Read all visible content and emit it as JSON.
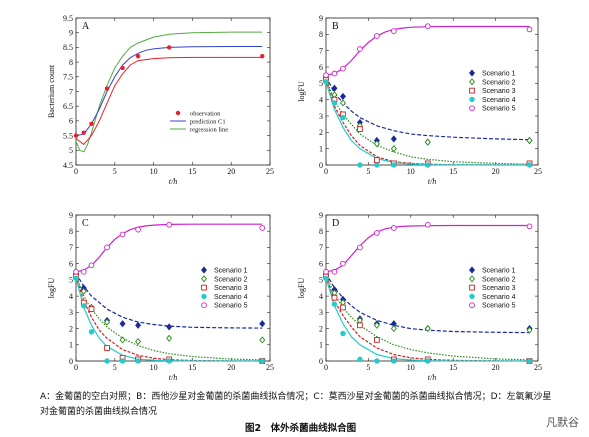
{
  "caption": "A：金葡菌的空白对照；B：西他沙星对金葡菌的杀菌曲线拟合情况；C：莫西沙星对金葡菌的杀菌曲线拟合情况；D：左氧氟沙星对金葡菌的杀菌曲线拟合情况",
  "figure_title": "图2　体外杀菌曲线拟合图",
  "watermark": "凡默谷",
  "colors": {
    "observation": "#e8202a",
    "prediction": "#3344cc",
    "regression": "#55aa44",
    "s1": "#1a2a9a",
    "s2": "#2a8a1a",
    "s3": "#cc2222",
    "s4": "#22cccc",
    "s5": "#cc22cc"
  },
  "chart_data": [
    {
      "id": "A",
      "type": "line",
      "panel_label": "A",
      "xlabel": "t/h",
      "ylabel": "Bacterium count",
      "xlim": [
        0,
        25
      ],
      "ylim": [
        4.5,
        9.5
      ],
      "xticks": [
        0,
        5,
        10,
        15,
        20,
        25
      ],
      "yticks": [
        4.5,
        5,
        5.5,
        6,
        6.5,
        7,
        7.5,
        8,
        8.5,
        9,
        9.5
      ],
      "legend": [
        "observation",
        "prediction C1",
        "regression line"
      ],
      "observation": {
        "x": [
          0,
          1,
          2,
          4,
          6,
          8,
          12,
          24
        ],
        "y": [
          5.5,
          5.6,
          5.9,
          7.1,
          7.8,
          8.2,
          8.5,
          8.2
        ]
      },
      "prediction": {
        "x": [
          0,
          1,
          2,
          3,
          4,
          5,
          6,
          7,
          8,
          9,
          10,
          12,
          15,
          20,
          24
        ],
        "y": [
          5.5,
          5.55,
          5.9,
          6.4,
          7.0,
          7.5,
          7.9,
          8.15,
          8.3,
          8.4,
          8.45,
          8.5,
          8.52,
          8.53,
          8.53
        ]
      },
      "regression": {
        "x": [
          0,
          0.5,
          1,
          1.5,
          2,
          3,
          4,
          5,
          6,
          7,
          8,
          10,
          12,
          15,
          20,
          24
        ],
        "y": [
          5.3,
          5.0,
          4.95,
          5.2,
          5.6,
          6.5,
          7.2,
          7.8,
          8.2,
          8.5,
          8.65,
          8.85,
          8.95,
          9.0,
          9.02,
          9.02
        ]
      },
      "line_fit": {
        "x": [
          0,
          1,
          2,
          3,
          4,
          5,
          6,
          7,
          8,
          10,
          12,
          15,
          20,
          24
        ],
        "y": [
          5.4,
          5.2,
          5.5,
          6.0,
          6.6,
          7.2,
          7.6,
          7.9,
          8.05,
          8.12,
          8.15,
          8.16,
          8.16,
          8.16
        ]
      }
    },
    {
      "id": "B",
      "type": "scatter",
      "panel_label": "B",
      "xlabel": "t/h",
      "ylabel": "logFU",
      "xlim": [
        0,
        25
      ],
      "ylim": [
        0,
        9
      ],
      "xticks": [
        0,
        5,
        10,
        15,
        20,
        25
      ],
      "yticks": [
        0,
        1,
        2,
        3,
        4,
        5,
        6,
        7,
        8,
        9
      ],
      "series": [
        {
          "name": "Scenario 1",
          "marker": "diamond",
          "x": [
            0,
            1,
            2,
            4,
            6,
            8,
            12,
            24
          ],
          "y": [
            5.4,
            4.7,
            4.2,
            2.6,
            1.5,
            1.6,
            1.4,
            1.5
          ],
          "fit_x": [
            0,
            1,
            2,
            3,
            4,
            6,
            8,
            10,
            12,
            15,
            20,
            24
          ],
          "fit_y": [
            5.4,
            4.4,
            3.8,
            3.3,
            2.9,
            2.4,
            2.1,
            1.9,
            1.8,
            1.7,
            1.6,
            1.55
          ]
        },
        {
          "name": "Scenario 2",
          "marker": "diamond-open",
          "x": [
            0,
            1,
            2,
            4,
            6,
            8,
            12,
            24
          ],
          "y": [
            5.3,
            4.3,
            3.8,
            2.4,
            1.3,
            1.0,
            1.4,
            1.5
          ],
          "fit_x": [
            0,
            1,
            2,
            3,
            4,
            6,
            8,
            10,
            12,
            15,
            20,
            24
          ],
          "fit_y": [
            5.3,
            3.9,
            3.1,
            2.5,
            1.9,
            1.2,
            0.8,
            0.5,
            0.35,
            0.2,
            0.1,
            0.05
          ]
        },
        {
          "name": "Scenario 3",
          "marker": "square-open",
          "x": [
            0,
            1,
            2,
            4,
            6,
            8,
            12,
            24
          ],
          "y": [
            5.2,
            4.0,
            3.1,
            2.2,
            0.3,
            0.1,
            0.1,
            0.1
          ],
          "fit_x": [
            0,
            1,
            2,
            3,
            4,
            6,
            8,
            10,
            12,
            15,
            20,
            24
          ],
          "fit_y": [
            5.2,
            3.6,
            2.6,
            1.8,
            1.2,
            0.5,
            0.2,
            0.1,
            0.05,
            0.02,
            0.01,
            0.0
          ]
        },
        {
          "name": "Scenario 4",
          "marker": "circle",
          "x": [
            0,
            1,
            2,
            4,
            6,
            8,
            12,
            24
          ],
          "y": [
            5.1,
            3.8,
            2.9,
            0.0,
            0.0,
            0.0,
            0.0,
            0.0
          ],
          "fit_x": [
            0,
            1,
            2,
            3,
            4,
            6,
            8,
            10,
            12,
            15,
            20,
            24
          ],
          "fit_y": [
            5.1,
            3.4,
            2.3,
            1.5,
            1.0,
            0.4,
            0.15,
            0.06,
            0.02,
            0.01,
            0.0,
            0.0
          ]
        },
        {
          "name": "Scenario 5",
          "marker": "circle-open",
          "x": [
            0,
            1,
            2,
            4,
            6,
            8,
            12,
            24
          ],
          "y": [
            5.5,
            5.6,
            5.9,
            7.1,
            7.9,
            8.2,
            8.5,
            8.3
          ],
          "fit_x": [
            0,
            1,
            2,
            3,
            4,
            5,
            6,
            7,
            8,
            9,
            10,
            12,
            15,
            20,
            24
          ],
          "fit_y": [
            5.5,
            5.6,
            5.9,
            6.4,
            7.0,
            7.5,
            7.9,
            8.15,
            8.3,
            8.38,
            8.43,
            8.47,
            8.48,
            8.48,
            8.48
          ]
        }
      ]
    },
    {
      "id": "C",
      "type": "scatter",
      "panel_label": "C",
      "xlabel": "t/h",
      "ylabel": "logFU",
      "xlim": [
        0,
        25
      ],
      "ylim": [
        0,
        9
      ],
      "xticks": [
        0,
        5,
        10,
        15,
        20,
        25
      ],
      "yticks": [
        0,
        1,
        2,
        3,
        4,
        5,
        6,
        7,
        8,
        9
      ],
      "series": [
        {
          "name": "Scenario 1",
          "marker": "diamond",
          "x": [
            0,
            1,
            2,
            4,
            6,
            8,
            12,
            24
          ],
          "y": [
            5.4,
            4.5,
            3.3,
            2.5,
            2.3,
            2.2,
            2.1,
            2.3
          ],
          "fit_x": [
            0,
            1,
            2,
            3,
            4,
            6,
            8,
            10,
            12,
            15,
            20,
            24
          ],
          "fit_y": [
            5.4,
            4.6,
            4.0,
            3.6,
            3.2,
            2.7,
            2.4,
            2.25,
            2.15,
            2.08,
            2.04,
            2.03
          ]
        },
        {
          "name": "Scenario 2",
          "marker": "diamond-open",
          "x": [
            0,
            1,
            2,
            4,
            6,
            8,
            12,
            24
          ],
          "y": [
            5.3,
            4.3,
            3.3,
            2.4,
            1.3,
            1.2,
            1.4,
            1.3
          ],
          "fit_x": [
            0,
            1,
            2,
            3,
            4,
            6,
            8,
            10,
            12,
            15,
            20,
            24
          ],
          "fit_y": [
            5.3,
            4.0,
            3.2,
            2.6,
            2.1,
            1.4,
            0.95,
            0.65,
            0.45,
            0.28,
            0.12,
            0.07
          ]
        },
        {
          "name": "Scenario 3",
          "marker": "square-open",
          "x": [
            0,
            1,
            2,
            4,
            6,
            8,
            12,
            24
          ],
          "y": [
            5.2,
            3.6,
            3.2,
            0.8,
            0.2,
            0.1,
            0.1,
            0.0
          ],
          "fit_x": [
            0,
            1,
            2,
            3,
            4,
            6,
            8,
            10,
            12,
            15,
            20,
            24
          ],
          "fit_y": [
            5.2,
            3.7,
            2.7,
            1.9,
            1.4,
            0.7,
            0.35,
            0.17,
            0.08,
            0.03,
            0.01,
            0.0
          ]
        },
        {
          "name": "Scenario 4",
          "marker": "circle",
          "x": [
            0,
            1,
            2,
            4,
            6,
            8,
            12,
            24
          ],
          "y": [
            5.1,
            3.4,
            1.8,
            0.0,
            0.0,
            0.0,
            0.0,
            0.0
          ],
          "fit_x": [
            0,
            1,
            2,
            3,
            4,
            6,
            8,
            10,
            12,
            15,
            20,
            24
          ],
          "fit_y": [
            5.1,
            3.3,
            2.2,
            1.4,
            0.9,
            0.35,
            0.12,
            0.05,
            0.02,
            0.0,
            0.0,
            0.0
          ]
        },
        {
          "name": "Scenario 5",
          "marker": "circle-open",
          "x": [
            0,
            1,
            2,
            4,
            6,
            8,
            12,
            24
          ],
          "y": [
            5.5,
            5.5,
            5.9,
            7.0,
            7.8,
            8.1,
            8.4,
            8.2
          ],
          "fit_x": [
            0,
            1,
            2,
            3,
            4,
            5,
            6,
            7,
            8,
            9,
            10,
            12,
            15,
            20,
            24
          ],
          "fit_y": [
            5.5,
            5.6,
            5.9,
            6.4,
            7.0,
            7.5,
            7.85,
            8.1,
            8.25,
            8.33,
            8.38,
            8.42,
            8.43,
            8.43,
            8.43
          ]
        }
      ]
    },
    {
      "id": "D",
      "type": "scatter",
      "panel_label": "D",
      "xlabel": "t/h",
      "ylabel": "logFU",
      "xlim": [
        0,
        25
      ],
      "ylim": [
        0,
        9
      ],
      "xticks": [
        0,
        5,
        10,
        15,
        20,
        25
      ],
      "yticks": [
        0,
        1,
        2,
        3,
        4,
        5,
        6,
        7,
        8,
        9
      ],
      "series": [
        {
          "name": "Scenario 1",
          "marker": "diamond",
          "x": [
            0,
            1,
            2,
            4,
            6,
            8,
            12,
            24
          ],
          "y": [
            5.4,
            4.4,
            3.8,
            2.6,
            2.3,
            2.3,
            2.0,
            2.0
          ],
          "fit_x": [
            0,
            1,
            2,
            3,
            4,
            6,
            8,
            10,
            12,
            15,
            20,
            24
          ],
          "fit_y": [
            5.4,
            4.5,
            3.9,
            3.4,
            3.0,
            2.5,
            2.2,
            2.0,
            1.9,
            1.82,
            1.77,
            1.75
          ]
        },
        {
          "name": "Scenario 2",
          "marker": "diamond-open",
          "x": [
            0,
            1,
            2,
            4,
            6,
            8,
            12,
            24
          ],
          "y": [
            5.3,
            4.2,
            3.6,
            2.5,
            2.2,
            2.0,
            2.0,
            1.9
          ],
          "fit_x": [
            0,
            1,
            2,
            3,
            4,
            6,
            8,
            10,
            12,
            15,
            20,
            24
          ],
          "fit_y": [
            5.3,
            4.1,
            3.3,
            2.7,
            2.2,
            1.5,
            1.0,
            0.7,
            0.5,
            0.3,
            0.13,
            0.07
          ]
        },
        {
          "name": "Scenario 3",
          "marker": "square-open",
          "x": [
            0,
            1,
            2,
            4,
            6,
            8,
            12,
            24
          ],
          "y": [
            5.2,
            3.9,
            3.3,
            2.2,
            1.3,
            0.1,
            0.1,
            0.0
          ],
          "fit_x": [
            0,
            1,
            2,
            3,
            4,
            6,
            8,
            10,
            12,
            15,
            20,
            24
          ],
          "fit_y": [
            5.2,
            3.7,
            2.8,
            2.1,
            1.5,
            0.8,
            0.4,
            0.2,
            0.1,
            0.04,
            0.01,
            0.0
          ]
        },
        {
          "name": "Scenario 4",
          "marker": "circle",
          "x": [
            0,
            1,
            2,
            4,
            6,
            8,
            12,
            24
          ],
          "y": [
            5.1,
            3.5,
            1.7,
            0.1,
            0.0,
            0.0,
            0.0,
            0.0
          ],
          "fit_x": [
            0,
            1,
            2,
            3,
            4,
            6,
            8,
            10,
            12,
            15,
            20,
            24
          ],
          "fit_y": [
            5.1,
            3.4,
            2.3,
            1.5,
            1.0,
            0.4,
            0.15,
            0.06,
            0.02,
            0.0,
            0.0,
            0.0
          ]
        },
        {
          "name": "Scenario 5",
          "marker": "circle-open",
          "x": [
            0,
            1,
            2,
            4,
            6,
            8,
            12,
            24
          ],
          "y": [
            5.5,
            5.5,
            6.0,
            7.0,
            7.9,
            8.2,
            8.4,
            8.3
          ],
          "fit_x": [
            0,
            1,
            2,
            3,
            4,
            5,
            6,
            7,
            8,
            9,
            10,
            12,
            15,
            20,
            24
          ],
          "fit_y": [
            5.5,
            5.6,
            5.9,
            6.5,
            7.1,
            7.6,
            7.95,
            8.15,
            8.25,
            8.3,
            8.32,
            8.34,
            8.35,
            8.35,
            8.35
          ]
        }
      ]
    }
  ]
}
